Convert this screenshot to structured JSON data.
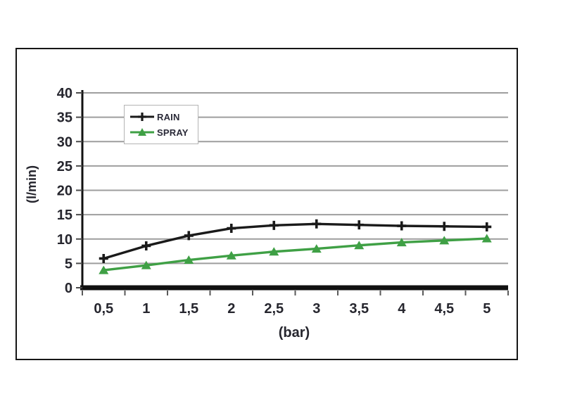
{
  "colors": {
    "rain": "#1a1a1a",
    "spray": "#3fa045",
    "grid": "#9e9e9e",
    "axis": "#111111",
    "tick_text": "#26262e",
    "figure_border": "#161616",
    "legend_border": "#b4b4b4"
  },
  "chart_data": {
    "type": "line",
    "title": "",
    "xlabel": "(bar)",
    "ylabel": "(l/min)",
    "categories": [
      "0,5",
      "1",
      "1,5",
      "2",
      "2,5",
      "3",
      "3,5",
      "4",
      "4,5",
      "5"
    ],
    "series": [
      {
        "name": "RAIN",
        "marker": "plus",
        "color": "#1a1a1a",
        "values": [
          6.0,
          8.6,
          10.7,
          12.2,
          12.8,
          13.1,
          12.9,
          12.7,
          12.6,
          12.5
        ]
      },
      {
        "name": "SPRAY",
        "marker": "triangle",
        "color": "#3fa045",
        "values": [
          3.6,
          4.6,
          5.7,
          6.6,
          7.4,
          8.0,
          8.7,
          9.3,
          9.7,
          10.1
        ]
      }
    ],
    "ylim": [
      0,
      40
    ],
    "yticks": [
      0,
      5,
      10,
      15,
      20,
      25,
      30,
      35,
      40
    ],
    "grid": "horizontal",
    "legend_position": "top-left-inside"
  }
}
